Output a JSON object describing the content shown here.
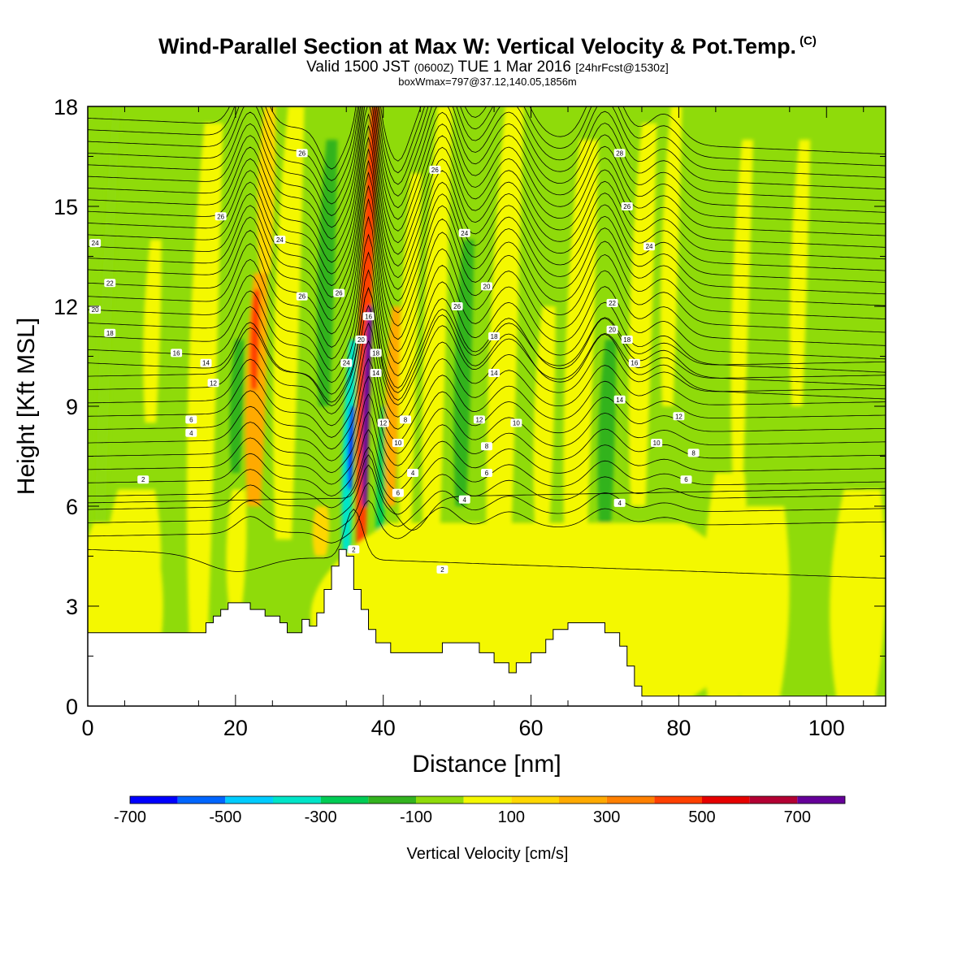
{
  "header": {
    "title": "Wind-Parallel Section at Max W: Vertical Velocity & Pot.Temp.",
    "copyright": "(C)",
    "valid_prefix": "Valid 1500 JST",
    "valid_utc": "(0600Z)",
    "valid_date": "TUE 1 Mar 2016",
    "forecast": "[24hrFcst@1530z]",
    "boxwmax": "boxWmax=797@37.12,140.05,1856m"
  },
  "chart_data": {
    "type": "heatmap",
    "xlabel": "Distance [nm]",
    "ylabel": "Height [Kft MSL]",
    "xlim": [
      0,
      108
    ],
    "ylim": [
      0,
      18
    ],
    "x_ticks": [
      "0",
      "20",
      "40",
      "60",
      "80",
      "100"
    ],
    "y_ticks": [
      "0",
      "3",
      "6",
      "9",
      "12",
      "15",
      "18"
    ],
    "colorbar": {
      "title": "Vertical Velocity [cm/s]",
      "levels": [
        -700,
        -600,
        -500,
        -400,
        -300,
        -200,
        -100,
        0,
        100,
        200,
        300,
        400,
        500,
        600,
        700,
        800
      ],
      "labels": [
        "-700",
        "-500",
        "-300",
        "-100",
        "100",
        "300",
        "500",
        "700"
      ],
      "colors": [
        "#0000ff",
        "#0066ff",
        "#00ccff",
        "#00e5c8",
        "#00cc55",
        "#33b31f",
        "#8fdb0a",
        "#f4f800",
        "#ffd700",
        "#ffaa00",
        "#ff8000",
        "#ff4000",
        "#e60000",
        "#b30033",
        "#660099"
      ]
    },
    "background_level": -50,
    "vertical_velocity_features": [
      {
        "x": 1.5,
        "y0": 0,
        "y1": 18,
        "w": 1.0,
        "v": -50
      },
      {
        "x": 6,
        "y0": 2,
        "y1": 6.5,
        "w": 5,
        "v": 60
      },
      {
        "x": 8.5,
        "y0": 8.5,
        "y1": 14,
        "w": 1.5,
        "v": 60
      },
      {
        "x": 15,
        "y0": 2,
        "y1": 17.5,
        "w": 2.5,
        "v": 60
      },
      {
        "x": 20,
        "y0": 3,
        "y1": 6.5,
        "w": 1.8,
        "v": 60
      },
      {
        "x": 20,
        "y0": 7,
        "y1": 11,
        "w": 1.2,
        "v": -160
      },
      {
        "x": 22.5,
        "y0": 6,
        "y1": 13,
        "w": 1.8,
        "v": 220
      },
      {
        "x": 22.5,
        "y0": 9.5,
        "y1": 12.5,
        "w": 0.8,
        "v": 420
      },
      {
        "x": 24,
        "y0": 13,
        "y1": 18,
        "w": 1.5,
        "v": 150
      },
      {
        "x": 26.5,
        "y0": 5,
        "y1": 18,
        "w": 2.2,
        "v": 60
      },
      {
        "x": 31.5,
        "y0": 4.5,
        "y1": 6,
        "w": 1.5,
        "v": 150
      },
      {
        "x": 32,
        "y0": 9,
        "y1": 17,
        "w": 1.5,
        "v": -180
      },
      {
        "x": 35,
        "y0": 4,
        "y1": 11,
        "w": 1.0,
        "v": -330
      },
      {
        "x": 35.5,
        "y0": 6.5,
        "y1": 9,
        "w": 0.5,
        "v": -650
      },
      {
        "x": 37,
        "y0": 3.5,
        "y1": 18,
        "w": 1.1,
        "v": 400
      },
      {
        "x": 37.5,
        "y0": 6,
        "y1": 12,
        "w": 0.6,
        "v": 720
      },
      {
        "x": 39.5,
        "y0": 4,
        "y1": 9,
        "w": 0.8,
        "v": -250
      },
      {
        "x": 41,
        "y0": 6,
        "y1": 12,
        "w": 1.2,
        "v": 240
      },
      {
        "x": 43,
        "y0": 5,
        "y1": 16,
        "w": 1.5,
        "v": 60
      },
      {
        "x": 46.5,
        "y0": 4,
        "y1": 18,
        "w": 2.0,
        "v": 80
      },
      {
        "x": 50.5,
        "y0": 6,
        "y1": 14,
        "w": 1.5,
        "v": -170
      },
      {
        "x": 55.5,
        "y0": 1,
        "y1": 18,
        "w": 2.5,
        "v": 60
      },
      {
        "x": 61.5,
        "y0": 5,
        "y1": 12,
        "w": 1.8,
        "v": 60
      },
      {
        "x": 66,
        "y0": 3,
        "y1": 17,
        "w": 2.5,
        "v": 60
      },
      {
        "x": 70,
        "y0": 5,
        "y1": 11,
        "w": 1.5,
        "v": -170
      },
      {
        "x": 74.5,
        "y0": 6,
        "y1": 17.5,
        "w": 2.0,
        "v": 70
      },
      {
        "x": 78.5,
        "y0": 9,
        "y1": 18,
        "w": 1.5,
        "v": 80
      },
      {
        "x": 86,
        "y0": 0,
        "y1": 7,
        "w": 4,
        "v": 60
      },
      {
        "x": 88,
        "y0": 7,
        "y1": 17,
        "w": 1.5,
        "v": 60
      },
      {
        "x": 91,
        "y0": 0,
        "y1": 6,
        "w": 5,
        "v": 60
      },
      {
        "x": 96,
        "y0": 9,
        "y1": 17,
        "w": 1.5,
        "v": 60
      },
      {
        "x": 104,
        "y0": 0,
        "y1": 6.5,
        "w": 5,
        "v": 60
      },
      {
        "x": 4,
        "y0": 0,
        "y1": 5.5,
        "w": 8,
        "v": 60
      },
      {
        "x": 60,
        "y0": 0,
        "y1": 5.5,
        "w": 40,
        "v": 60
      }
    ],
    "terrain_kft": [
      [
        0,
        2.2
      ],
      [
        15,
        2.2
      ],
      [
        16,
        2.5
      ],
      [
        17,
        2.7
      ],
      [
        18,
        2.9
      ],
      [
        19,
        3.1
      ],
      [
        21,
        3.1
      ],
      [
        22,
        2.9
      ],
      [
        24,
        2.7
      ],
      [
        26,
        2.5
      ],
      [
        27,
        2.2
      ],
      [
        28,
        2.2
      ],
      [
        29,
        2.6
      ],
      [
        30,
        2.4
      ],
      [
        31,
        2.8
      ],
      [
        32,
        3.5
      ],
      [
        33,
        4.2
      ],
      [
        34,
        4.7
      ],
      [
        35,
        4.5
      ],
      [
        36,
        3.5
      ],
      [
        37,
        2.9
      ],
      [
        38,
        2.3
      ],
      [
        39,
        1.9
      ],
      [
        41,
        1.6
      ],
      [
        46,
        1.6
      ],
      [
        48,
        1.9
      ],
      [
        51,
        1.9
      ],
      [
        53,
        1.6
      ],
      [
        55,
        1.3
      ],
      [
        57,
        1.0
      ],
      [
        58,
        1.3
      ],
      [
        60,
        1.6
      ],
      [
        62,
        2.0
      ],
      [
        63,
        2.3
      ],
      [
        65,
        2.5
      ],
      [
        69,
        2.5
      ],
      [
        70,
        2.2
      ],
      [
        72,
        1.8
      ],
      [
        73,
        1.2
      ],
      [
        74,
        0.6
      ],
      [
        75,
        0.3
      ],
      [
        108,
        0.3
      ]
    ],
    "isentropes": {
      "level_count": 36,
      "label_positions": [
        {
          "x": 7.5,
          "y": 6.8,
          "t": "2"
        },
        {
          "x": 14,
          "y": 8.2,
          "t": "4"
        },
        {
          "x": 14,
          "y": 8.6,
          "t": "6"
        },
        {
          "x": 17,
          "y": 9.7,
          "t": "12"
        },
        {
          "x": 16,
          "y": 10.3,
          "t": "14"
        },
        {
          "x": 12,
          "y": 10.6,
          "t": "16"
        },
        {
          "x": 3,
          "y": 11.2,
          "t": "18"
        },
        {
          "x": 1,
          "y": 11.9,
          "t": "20"
        },
        {
          "x": 3,
          "y": 12.7,
          "t": "22"
        },
        {
          "x": 1,
          "y": 13.9,
          "t": "24"
        },
        {
          "x": 18,
          "y": 14.7,
          "t": "26"
        },
        {
          "x": 26,
          "y": 14,
          "t": "24"
        },
        {
          "x": 29,
          "y": 16.6,
          "t": "26"
        },
        {
          "x": 29,
          "y": 12.3,
          "t": "26"
        },
        {
          "x": 34,
          "y": 12.4,
          "t": "26"
        },
        {
          "x": 35,
          "y": 10.3,
          "t": "24"
        },
        {
          "x": 38,
          "y": 11.7,
          "t": "16"
        },
        {
          "x": 37,
          "y": 11,
          "t": "20"
        },
        {
          "x": 39,
          "y": 10.6,
          "t": "18"
        },
        {
          "x": 39,
          "y": 10,
          "t": "14"
        },
        {
          "x": 40,
          "y": 8.5,
          "t": "12"
        },
        {
          "x": 42,
          "y": 7.9,
          "t": "10"
        },
        {
          "x": 43,
          "y": 8.6,
          "t": "8"
        },
        {
          "x": 44,
          "y": 7,
          "t": "4"
        },
        {
          "x": 42,
          "y": 6.4,
          "t": "6"
        },
        {
          "x": 48,
          "y": 4.1,
          "t": "2"
        },
        {
          "x": 47,
          "y": 16.1,
          "t": "26"
        },
        {
          "x": 51,
          "y": 14.2,
          "t": "24"
        },
        {
          "x": 54,
          "y": 12.6,
          "t": "20"
        },
        {
          "x": 50,
          "y": 12,
          "t": "26"
        },
        {
          "x": 55,
          "y": 11.1,
          "t": "18"
        },
        {
          "x": 55,
          "y": 10,
          "t": "14"
        },
        {
          "x": 53,
          "y": 8.6,
          "t": "12"
        },
        {
          "x": 54,
          "y": 7.8,
          "t": "8"
        },
        {
          "x": 54,
          "y": 7,
          "t": "6"
        },
        {
          "x": 51,
          "y": 6.2,
          "t": "4"
        },
        {
          "x": 58,
          "y": 8.5,
          "t": "10"
        },
        {
          "x": 72,
          "y": 16.6,
          "t": "28"
        },
        {
          "x": 73,
          "y": 15,
          "t": "26"
        },
        {
          "x": 76,
          "y": 13.8,
          "t": "24"
        },
        {
          "x": 71,
          "y": 12.1,
          "t": "22"
        },
        {
          "x": 71,
          "y": 11.3,
          "t": "20"
        },
        {
          "x": 73,
          "y": 11,
          "t": "18"
        },
        {
          "x": 74,
          "y": 10.3,
          "t": "16"
        },
        {
          "x": 72,
          "y": 9.2,
          "t": "14"
        },
        {
          "x": 80,
          "y": 8.7,
          "t": "12"
        },
        {
          "x": 77,
          "y": 7.9,
          "t": "10"
        },
        {
          "x": 82,
          "y": 7.6,
          "t": "8"
        },
        {
          "x": 81,
          "y": 6.8,
          "t": "6"
        },
        {
          "x": 72,
          "y": 6.1,
          "t": "4"
        },
        {
          "x": 36,
          "y": 4.7,
          "t": "2"
        }
      ]
    }
  }
}
